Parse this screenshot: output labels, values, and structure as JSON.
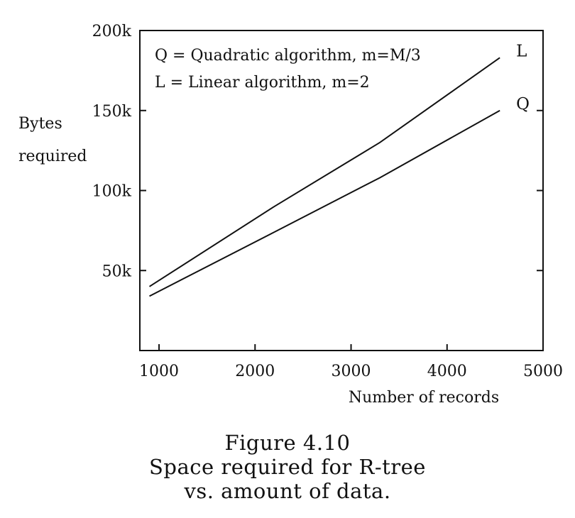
{
  "chart_data": {
    "type": "line",
    "title": "",
    "xlabel": "Number of records",
    "ylabel": [
      "Bytes",
      "required"
    ],
    "xlim": [
      800,
      5000
    ],
    "ylim": [
      0,
      200000
    ],
    "xticks": [
      1000,
      2000,
      3000,
      4000,
      5000
    ],
    "xtick_labels": [
      "1000",
      "2000",
      "3000",
      "4000",
      "5000"
    ],
    "yticks": [
      50000,
      100000,
      150000,
      200000
    ],
    "ytick_labels": [
      "50k",
      "100k",
      "150k",
      "200k"
    ],
    "grid": false,
    "legend": {
      "placement": "top-left",
      "entries": [
        "Q = Quadratic algorithm, m=M/3",
        "L = Linear algorithm, m=2"
      ]
    },
    "series": [
      {
        "name": "L",
        "x": [
          900,
          2200,
          3300,
          4550
        ],
        "y": [
          40000,
          90000,
          130000,
          183000
        ]
      },
      {
        "name": "Q",
        "x": [
          900,
          2200,
          3300,
          4550
        ],
        "y": [
          34000,
          74000,
          108000,
          150000
        ]
      }
    ]
  },
  "caption": {
    "line1": "Figure 4.10",
    "line2": "Space required for R-tree",
    "line3": "vs. amount of data."
  }
}
